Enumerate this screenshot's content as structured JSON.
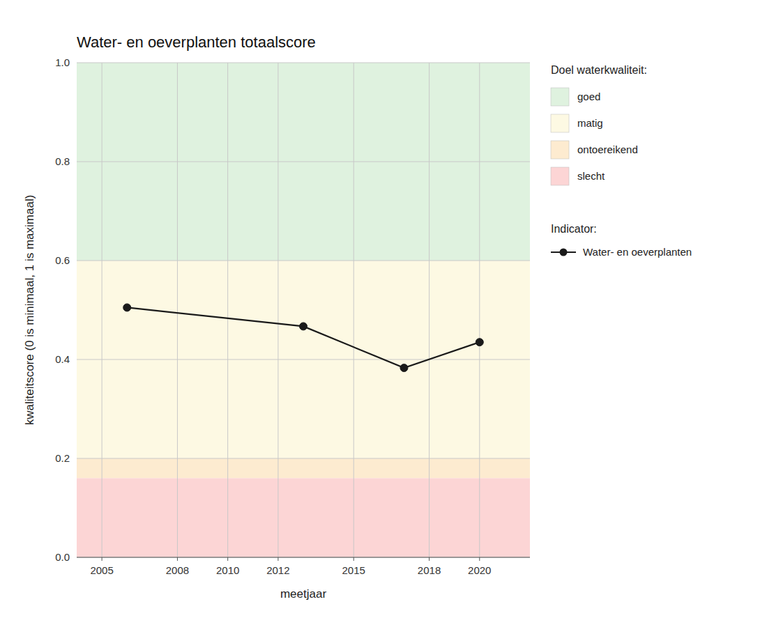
{
  "chart_data": {
    "type": "line",
    "title": "Water- en oeverplanten totaalscore",
    "x_label": "meetjaar",
    "y_label": "kwaliteitscore (0 is minimaal, 1 is maximaal)",
    "x": [
      2006,
      2013,
      2017,
      2020
    ],
    "series": [
      {
        "name": "Water- en oeverplanten",
        "color": "#1a1a1a",
        "marker": "circle",
        "line_style": "solid",
        "values": [
          0.505,
          0.467,
          0.383,
          0.435
        ]
      }
    ],
    "legend_title": "Indicator:",
    "zones_title": "Doel waterkwaliteit:",
    "zones": [
      {
        "label": "goed",
        "color": "#dff2df",
        "from": 0.6,
        "to": 1.0
      },
      {
        "label": "matig",
        "color": "#fdf9e3",
        "from": 0.2,
        "to": 0.6
      },
      {
        "label": "ontoereikend",
        "color": "#fdebd0",
        "from": 0.16,
        "to": 0.2
      },
      {
        "label": "slecht",
        "color": "#fcd5d5",
        "from": 0.0,
        "to": 0.16
      }
    ],
    "xlim": [
      2004.0,
      2022.0
    ],
    "ylim": [
      0.0,
      1.0
    ],
    "xticks": [
      2005,
      2008,
      2010,
      2012,
      2015,
      2018,
      2020
    ],
    "yticks": [
      {
        "value": 0.0,
        "label": "0.0"
      },
      0.2,
      0.4,
      0.6,
      0.8,
      {
        "value": 1.0,
        "label": "1.0"
      }
    ],
    "grid": true,
    "legend": "right"
  }
}
